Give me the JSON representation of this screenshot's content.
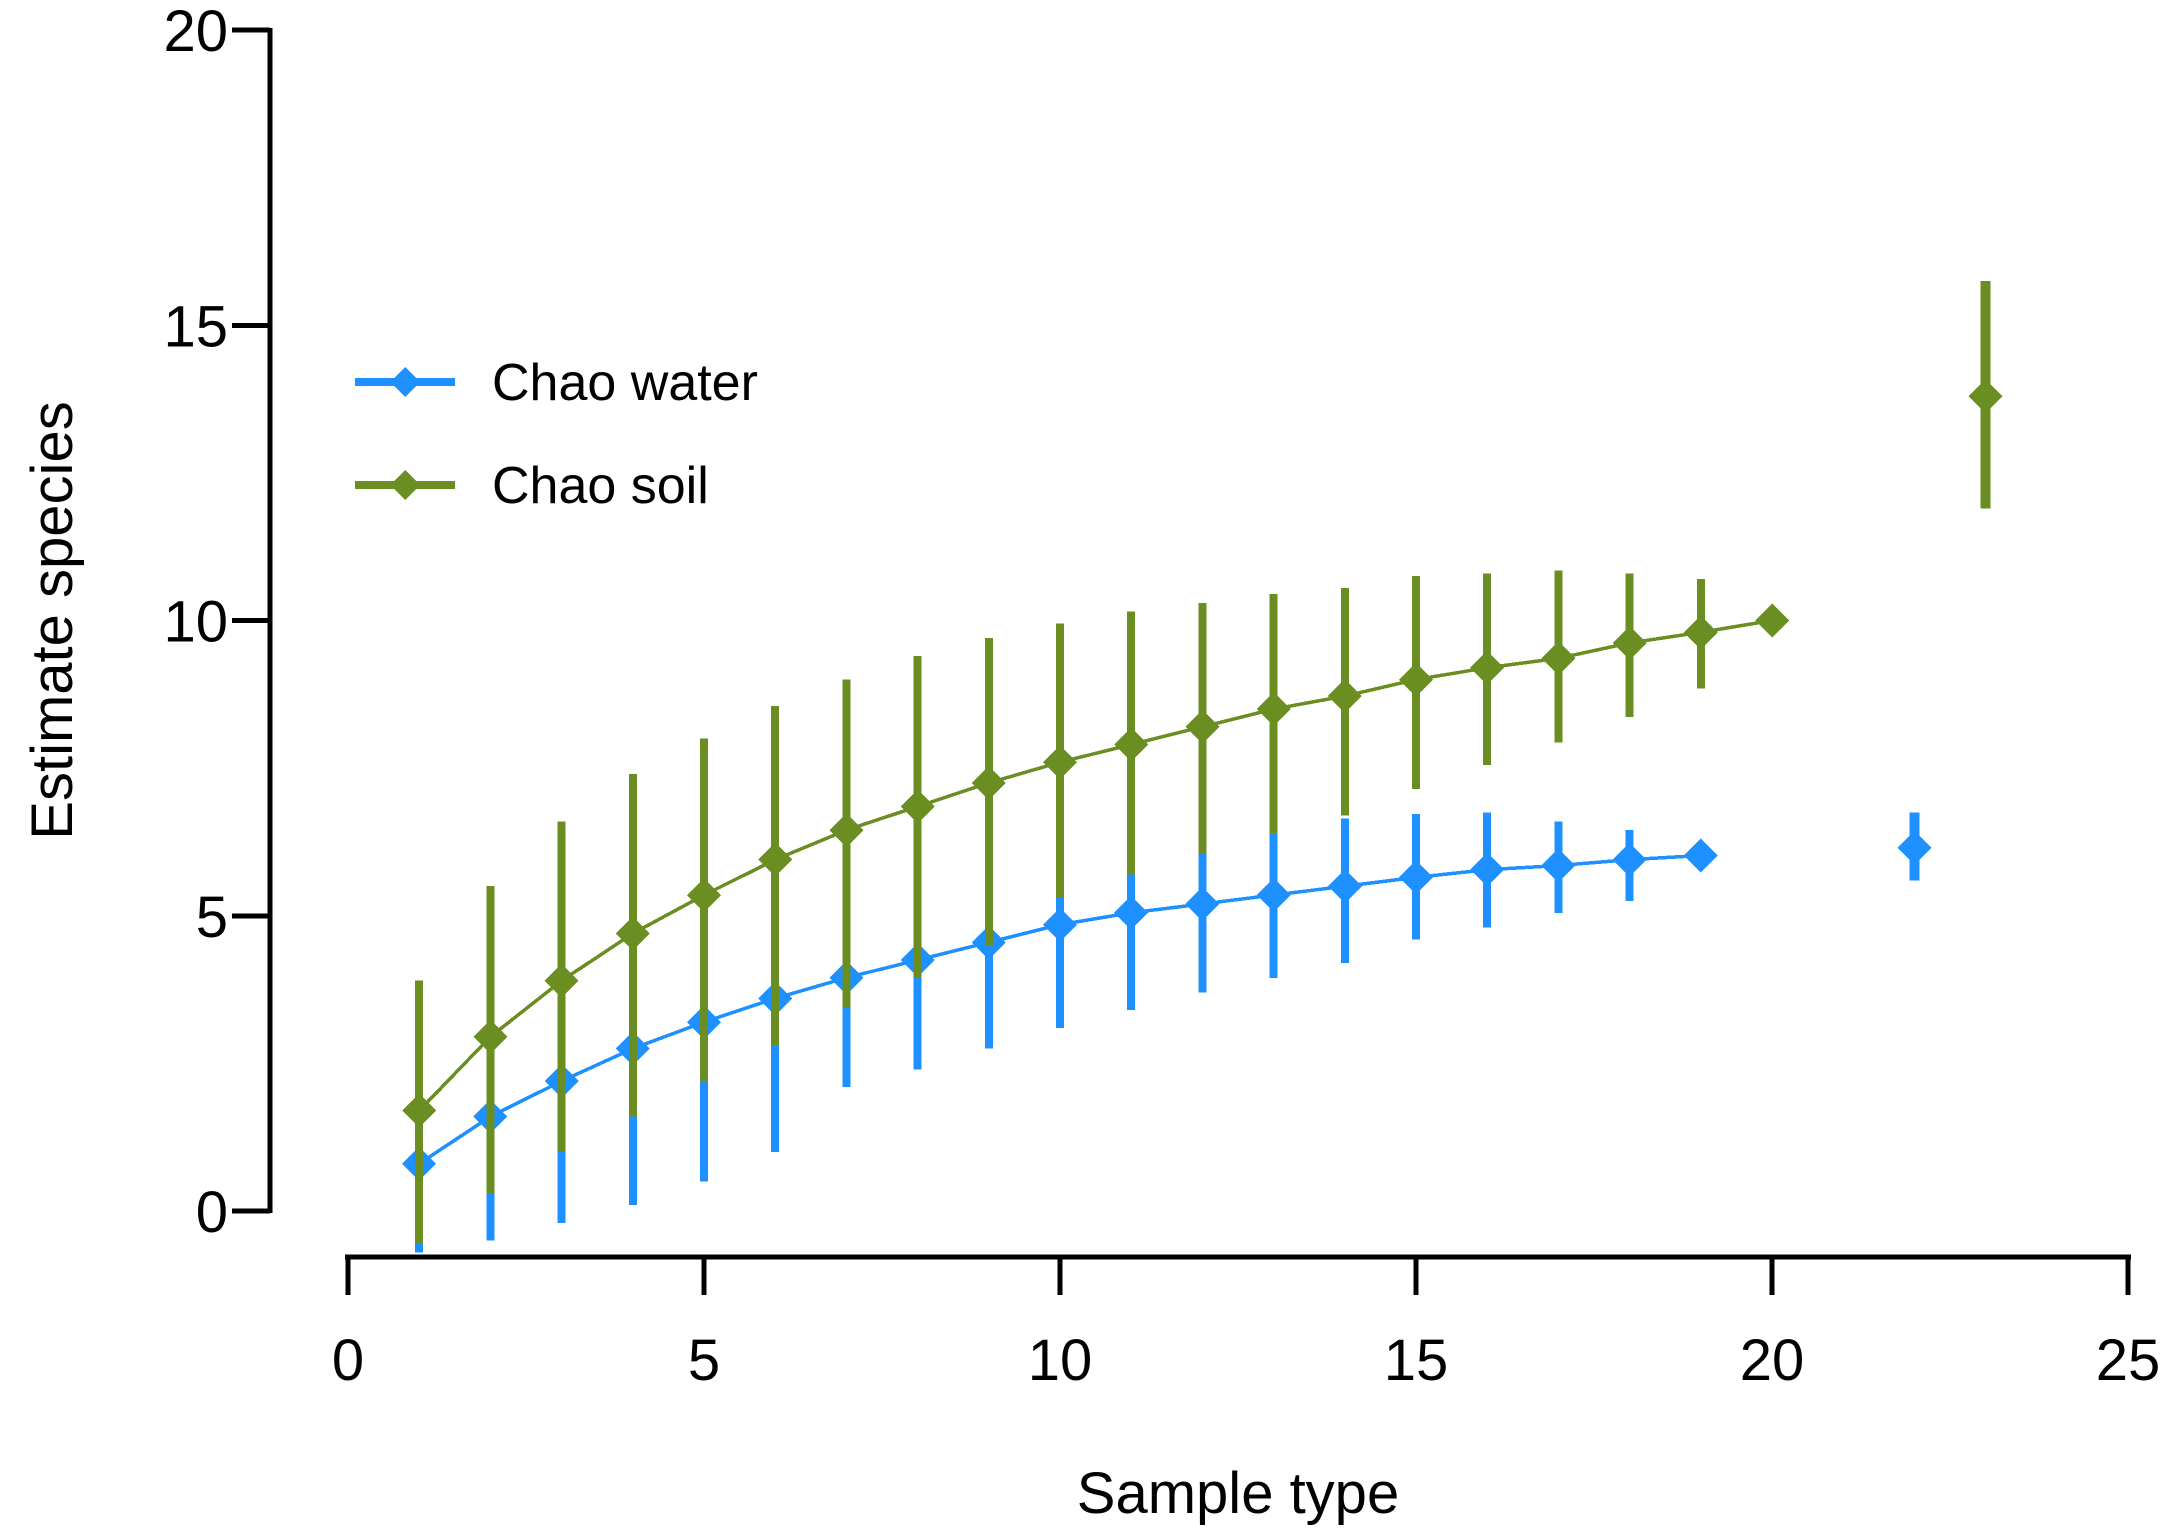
{
  "chart_data": {
    "type": "scatter",
    "title": "",
    "x_axis": {
      "label": "Sample type",
      "ticks": [
        0,
        5,
        10,
        15,
        20,
        25
      ],
      "range": [
        0,
        25
      ]
    },
    "y_axis": {
      "label": "Estimate species",
      "ticks": [
        0,
        5,
        10,
        15,
        20
      ],
      "range": [
        0,
        20
      ]
    },
    "grid": "off",
    "legend_position": "upper-left-inside",
    "marker_shape": "diamond",
    "background_color": "#ffffff",
    "axis_color": "#000000",
    "series": [
      {
        "name": "Chao water",
        "color": "#1E90FF",
        "x": [
          1,
          2,
          3,
          4,
          5,
          6,
          7,
          8,
          9,
          10,
          11,
          12,
          13,
          14,
          15,
          16,
          17,
          18,
          19
        ],
        "y": [
          0.8,
          1.6,
          2.2,
          2.75,
          3.2,
          3.6,
          3.95,
          4.25,
          4.55,
          4.85,
          5.05,
          5.2,
          5.35,
          5.5,
          5.65,
          5.78,
          5.85,
          5.95,
          6.02
        ],
        "lo": [
          -0.7,
          -0.5,
          -0.2,
          0.1,
          0.5,
          1.0,
          2.1,
          2.4,
          2.75,
          3.1,
          3.4,
          3.7,
          3.95,
          4.2,
          4.6,
          4.8,
          5.05,
          5.25,
          6.02
        ],
        "hi": [
          2.3,
          3.0,
          3.6,
          4.1,
          4.5,
          4.9,
          5.3,
          5.6,
          5.9,
          6.1,
          6.3,
          6.45,
          6.55,
          6.65,
          6.72,
          6.75,
          6.6,
          6.45,
          6.02
        ],
        "isolated_point": {
          "x": 22,
          "y": 6.15,
          "lo": 5.6,
          "hi": 6.75
        }
      },
      {
        "name": "Chao soil",
        "color": "#6B8E23",
        "x": [
          1,
          2,
          3,
          4,
          5,
          6,
          7,
          8,
          9,
          10,
          11,
          12,
          13,
          14,
          15,
          16,
          17,
          18,
          19,
          20
        ],
        "y": [
          1.7,
          2.95,
          3.9,
          4.7,
          5.35,
          5.95,
          6.45,
          6.85,
          7.25,
          7.6,
          7.9,
          8.2,
          8.5,
          8.72,
          9.0,
          9.2,
          9.36,
          9.62,
          9.8,
          10.0
        ],
        "lo": [
          -0.55,
          0.3,
          1.0,
          1.6,
          2.2,
          2.8,
          3.45,
          3.95,
          4.5,
          5.3,
          5.7,
          6.05,
          6.4,
          6.7,
          7.15,
          7.55,
          7.93,
          8.37,
          8.85,
          10.0
        ],
        "hi": [
          3.9,
          5.5,
          6.6,
          7.4,
          8.0,
          8.55,
          9.0,
          9.4,
          9.7,
          9.95,
          10.15,
          10.3,
          10.45,
          10.55,
          10.75,
          10.8,
          10.85,
          10.8,
          10.7,
          10.0
        ],
        "isolated_point": {
          "x": 23,
          "y": 13.8,
          "lo": 11.9,
          "hi": 15.75
        }
      }
    ]
  }
}
